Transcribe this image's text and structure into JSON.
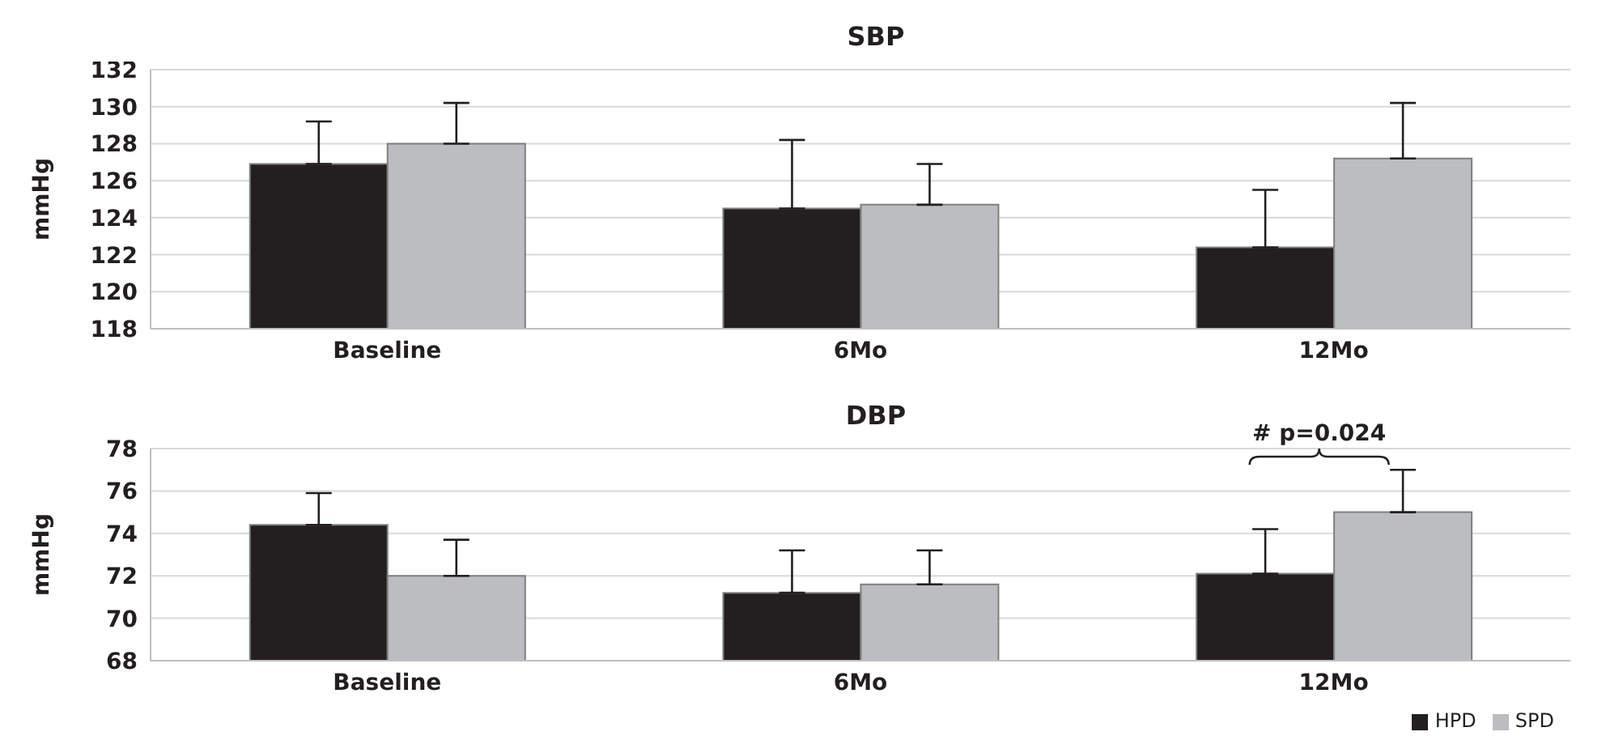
{
  "chart_data": [
    {
      "type": "bar",
      "title": "SBP",
      "ylabel": "mmHg",
      "categories": [
        "Baseline",
        "6Mo",
        "12Mo"
      ],
      "ylim": [
        118,
        132
      ],
      "yticks": [
        118,
        120,
        122,
        124,
        126,
        128,
        130,
        132
      ],
      "grid": "y",
      "legend": false,
      "series": [
        {
          "color": "#231f20",
          "values": [
            126.9,
            124.5,
            122.4
          ],
          "errors": [
            [
              126.9,
              129.2
            ],
            [
              124.5,
              128.2
            ],
            [
              122.4,
              125.5
            ]
          ]
        },
        {
          "color": "#bcbdc0",
          "values": [
            128.0,
            124.7,
            127.2
          ],
          "errors": [
            [
              128.0,
              130.2
            ],
            [
              124.7,
              126.9
            ],
            [
              127.2,
              130.2
            ]
          ]
        }
      ]
    },
    {
      "type": "bar",
      "title": "DBP",
      "ylabel": "mmHg",
      "categories": [
        "Baseline",
        "6Mo",
        "12Mo"
      ],
      "ylim": [
        68,
        78
      ],
      "yticks": [
        68,
        70,
        72,
        74,
        76,
        78
      ],
      "grid": "y",
      "legend": "bottom right",
      "series": [
        {
          "name": "HPD",
          "color": "#231f20",
          "values": [
            74.4,
            71.2,
            72.1
          ],
          "errors": [
            [
              74.4,
              75.9
            ],
            [
              71.2,
              73.2
            ],
            [
              72.1,
              74.2
            ]
          ]
        },
        {
          "name": "SPD",
          "color": "#bcbdc0",
          "values": [
            72.0,
            71.6,
            75.0
          ],
          "errors": [
            [
              72.0,
              73.7
            ],
            [
              71.6,
              73.2
            ],
            [
              75.0,
              77.0
            ]
          ]
        }
      ],
      "annotations": [
        "# p=0.024"
      ]
    }
  ]
}
